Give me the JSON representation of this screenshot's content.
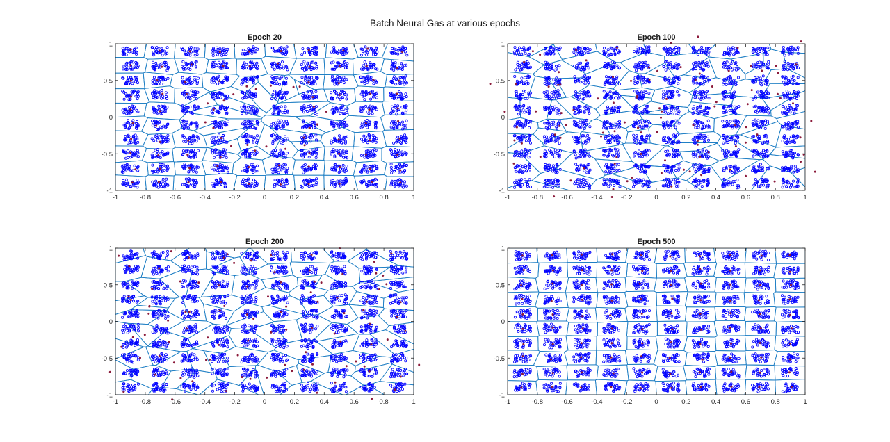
{
  "figure": {
    "title": "Batch Neural Gas at various epochs"
  },
  "colors": {
    "data_points": "#0000ff",
    "prototypes": "#8b1a3a",
    "voronoi_edges": "#1f7fc4",
    "axes": "#262626"
  },
  "chart_data": [
    {
      "type": "scatter",
      "title": "Epoch 20",
      "xlim": [
        -1,
        1
      ],
      "ylim": [
        -1,
        1
      ],
      "xticks": [
        "-1",
        "-0.8",
        "-0.6",
        "-0.4",
        "-0.2",
        "0",
        "0.2",
        "0.4",
        "0.6",
        "0.8",
        "1"
      ],
      "yticks": [
        "-1",
        "-0.5",
        "0",
        "0.5",
        "1"
      ],
      "cluster_grid": {
        "x_centers": [
          -0.9,
          -0.7,
          -0.5,
          -0.3,
          -0.1,
          0.1,
          0.3,
          0.5,
          0.7,
          0.9
        ],
        "y_centers": [
          -0.9,
          -0.7,
          -0.5,
          -0.3,
          -0.1,
          0.1,
          0.3,
          0.5,
          0.7,
          0.9
        ]
      },
      "prototype_layout": "ring",
      "prototype_count": 100
    },
    {
      "type": "scatter",
      "title": "Epoch 100",
      "xlim": [
        -1,
        1
      ],
      "ylim": [
        -1,
        1
      ],
      "xticks": [
        "-1",
        "-0.8",
        "-0.6",
        "-0.4",
        "-0.2",
        "0",
        "0.2",
        "0.4",
        "0.6",
        "0.8",
        "1"
      ],
      "yticks": [
        "-1",
        "-0.5",
        "0",
        "0.5",
        "1"
      ],
      "cluster_grid": {
        "x_centers": [
          -0.9,
          -0.7,
          -0.5,
          -0.3,
          -0.1,
          0.1,
          0.3,
          0.5,
          0.7,
          0.9
        ],
        "y_centers": [
          -0.9,
          -0.7,
          -0.5,
          -0.3,
          -0.1,
          0.1,
          0.3,
          0.5,
          0.7,
          0.9
        ]
      },
      "prototype_layout": "spreading",
      "prototype_count": 100
    },
    {
      "type": "scatter",
      "title": "Epoch 200",
      "xlim": [
        -1,
        1
      ],
      "ylim": [
        -1,
        1
      ],
      "xticks": [
        "-1",
        "-0.8",
        "-0.6",
        "-0.4",
        "-0.2",
        "0",
        "0.2",
        "0.4",
        "0.6",
        "0.8",
        "1"
      ],
      "yticks": [
        "-1",
        "-0.5",
        "0",
        "0.5",
        "1"
      ],
      "cluster_grid": {
        "x_centers": [
          -0.9,
          -0.7,
          -0.5,
          -0.3,
          -0.1,
          0.1,
          0.3,
          0.5,
          0.7,
          0.9
        ],
        "y_centers": [
          -0.9,
          -0.7,
          -0.5,
          -0.3,
          -0.1,
          0.1,
          0.3,
          0.5,
          0.7,
          0.9
        ]
      },
      "prototype_layout": "near-grid",
      "prototype_count": 100
    },
    {
      "type": "scatter",
      "title": "Epoch 500",
      "xlim": [
        -1,
        1
      ],
      "ylim": [
        -1,
        1
      ],
      "xticks": [
        "-1",
        "-0.8",
        "-0.6",
        "-0.4",
        "-0.2",
        "0",
        "0.2",
        "0.4",
        "0.6",
        "0.8",
        "1"
      ],
      "yticks": [
        "-1",
        "-0.5",
        "0",
        "0.5",
        "1"
      ],
      "cluster_grid": {
        "x_centers": [
          -0.9,
          -0.7,
          -0.5,
          -0.3,
          -0.1,
          0.1,
          0.3,
          0.5,
          0.7,
          0.9
        ],
        "y_centers": [
          -0.9,
          -0.7,
          -0.5,
          -0.3,
          -0.1,
          0.1,
          0.3,
          0.5,
          0.7,
          0.9
        ]
      },
      "prototype_layout": "converged-grid",
      "prototype_count": 100
    }
  ]
}
